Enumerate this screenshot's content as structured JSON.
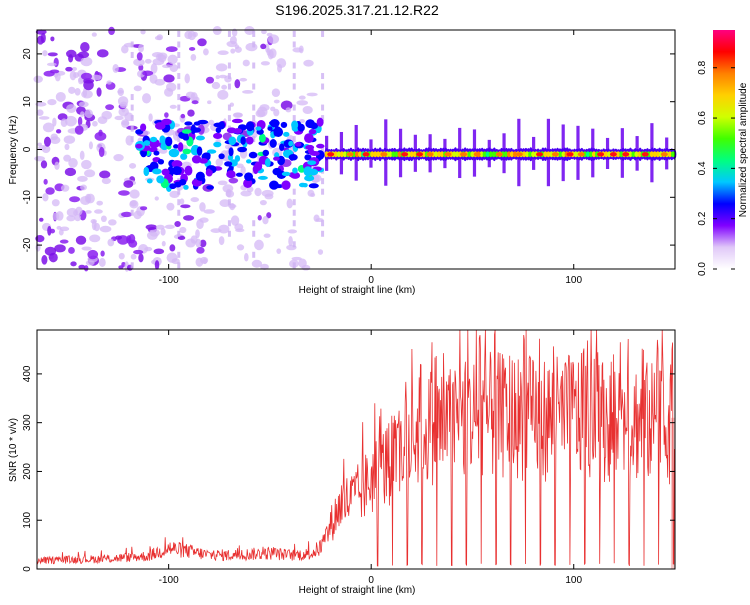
{
  "page": {
    "title": "S196.2025.317.21.12.R22"
  },
  "chart_data": [
    {
      "type": "heatmap",
      "title": "S196.2025.317.21.12.R22",
      "xlabel": "Height of straight line (km)",
      "ylabel": "Frequency (Hz)",
      "xlim": [
        -165,
        150
      ],
      "ylim": [
        -25,
        25
      ],
      "xticks": [
        -100,
        0,
        100
      ],
      "yticks": [
        -20,
        -10,
        0,
        10,
        20
      ],
      "xtick_labels": [
        "-100",
        "0",
        "100"
      ],
      "ytick_labels": [
        "-20",
        "-10",
        "0",
        "10",
        "20"
      ],
      "colorbar": {
        "label": "Normalized spectral amplitude",
        "range": [
          0,
          0.95
        ],
        "ticks": [
          0.0,
          0.2,
          0.4,
          0.6,
          0.8
        ],
        "tick_labels": [
          "0.0",
          "0.2",
          "0.4",
          "0.6",
          "0.8"
        ],
        "colors": [
          "#ffffff",
          "#e0c8f8",
          "#8000ff",
          "#0000ff",
          "#00c8ff",
          "#00ff80",
          "#40ff00",
          "#d0ff00",
          "#ffd000",
          "#ff8000",
          "#ff0000",
          "#ff0080"
        ]
      },
      "features": {
        "noise_region_x": [
          -165,
          -25
        ],
        "signal_start_x": -22,
        "signal_line_frequency": -1,
        "onset_cluster_x": [
          -115,
          -25
        ],
        "peak_amplitude": 0.95
      }
    },
    {
      "type": "line",
      "xlabel": "Height of straight line (km)",
      "ylabel": "SNR (10 * v/v)",
      "xlim": [
        -165,
        150
      ],
      "ylim": [
        0,
        490
      ],
      "xticks": [
        -100,
        0,
        100
      ],
      "yticks": [
        0,
        100,
        200,
        300,
        400
      ],
      "xtick_labels": [
        "-100",
        "0",
        "100"
      ],
      "ytick_labels": [
        "0",
        "100",
        "200",
        "300",
        "400"
      ],
      "series": [
        {
          "name": "SNR",
          "color": "#e83030",
          "x": [
            -165,
            -150,
            -130,
            -110,
            -100,
            -90,
            -80,
            -70,
            -60,
            -50,
            -40,
            -30,
            -24,
            -20,
            -15,
            -10,
            -5,
            0,
            5,
            10,
            15,
            20,
            25,
            30,
            40,
            50,
            60,
            70,
            80,
            90,
            100,
            110,
            120,
            130,
            140,
            150
          ],
          "baseline": [
            18,
            20,
            22,
            28,
            45,
            38,
            30,
            30,
            32,
            34,
            30,
            32,
            50,
            95,
            140,
            150,
            165,
            195,
            215,
            230,
            250,
            280,
            300,
            310,
            315,
            330,
            330,
            330,
            325,
            325,
            330,
            325,
            320,
            320,
            315,
            310
          ],
          "dropout_start_x": 3,
          "dropout_interval_km": 7.3,
          "dropout_min": 6,
          "spike_max": 490
        }
      ]
    }
  ]
}
